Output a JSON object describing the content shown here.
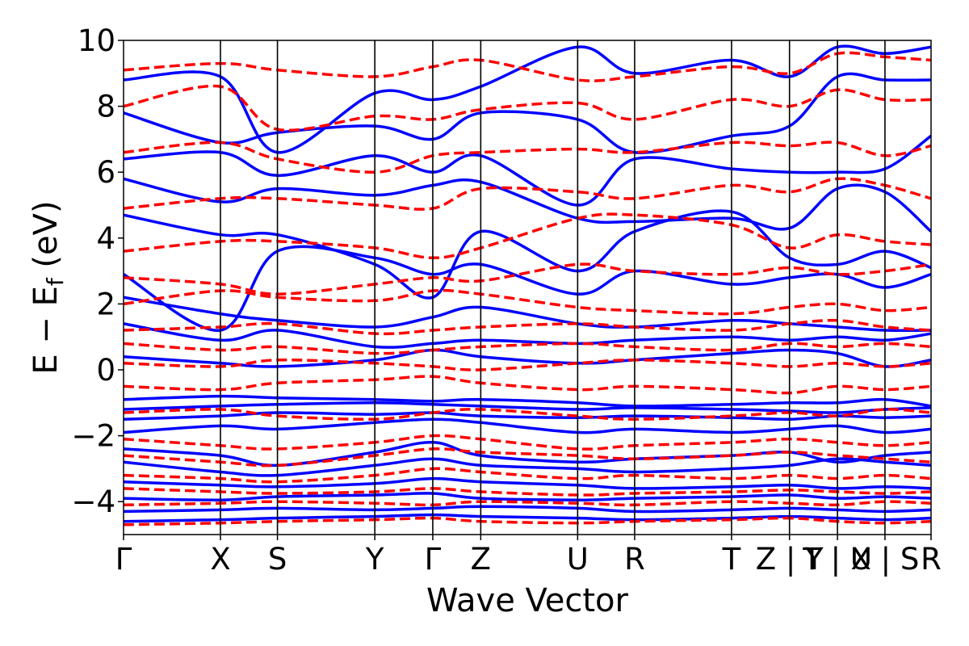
{
  "chart_data": {
    "type": "line",
    "title": "",
    "xlabel": "Wave Vector",
    "ylabel": {
      "main": "E − E",
      "sub": "f",
      "unit": " (eV)"
    },
    "ylim": [
      -5,
      10
    ],
    "yticks": [
      -4,
      -2,
      0,
      2,
      4,
      6,
      8,
      10
    ],
    "ytick_labels": [
      "−4",
      "−2",
      "0",
      "2",
      "4",
      "6",
      "8",
      "10"
    ],
    "xlim": [
      0,
      17
    ],
    "high_symmetry_points": [
      {
        "x": 0.0,
        "label": "Γ"
      },
      {
        "x": 2.04,
        "label": "X"
      },
      {
        "x": 3.24,
        "label": "S"
      },
      {
        "x": 5.29,
        "label": "Y"
      },
      {
        "x": 6.51,
        "label": "Γ"
      },
      {
        "x": 7.52,
        "label": "Z"
      },
      {
        "x": 9.56,
        "label": "U"
      },
      {
        "x": 10.76,
        "label": "R"
      },
      {
        "x": 12.8,
        "label": "T"
      },
      {
        "x": 14.02,
        "label": "Z | Y"
      },
      {
        "x": 15.03,
        "label": "T | U"
      },
      {
        "x": 16.03,
        "label": "X | S"
      },
      {
        "x": 17.0,
        "label": "R"
      }
    ],
    "grid": false,
    "legend": "none",
    "series": [
      {
        "style": "solid",
        "color": "#0000ff",
        "bands": [
          [
            -4.6,
            -4.55,
            -4.5,
            -4.45,
            -4.4,
            -4.45,
            -4.5,
            -4.55,
            -4.5,
            -4.45,
            -4.5,
            -4.55,
            -4.5
          ],
          [
            -4.3,
            -4.25,
            -4.2,
            -4.25,
            -4.2,
            -4.15,
            -4.2,
            -4.3,
            -4.25,
            -4.2,
            -4.25,
            -4.3,
            -4.25
          ],
          [
            -3.9,
            -3.95,
            -3.85,
            -3.8,
            -3.75,
            -3.9,
            -3.95,
            -3.9,
            -3.85,
            -3.8,
            -3.9,
            -3.85,
            -3.9
          ],
          [
            -3.4,
            -3.5,
            -3.55,
            -3.45,
            -3.3,
            -3.4,
            -3.5,
            -3.6,
            -3.55,
            -3.5,
            -3.6,
            -3.55,
            -3.6
          ],
          [
            -2.8,
            -3.1,
            -3.2,
            -2.9,
            -2.7,
            -2.9,
            -3.0,
            -3.1,
            -3.0,
            -2.9,
            -2.7,
            -2.8,
            -2.9
          ],
          [
            -2.4,
            -2.6,
            -2.9,
            -2.5,
            -2.2,
            -2.6,
            -2.8,
            -2.7,
            -2.6,
            -2.5,
            -2.8,
            -2.6,
            -2.5
          ],
          [
            -1.9,
            -1.7,
            -1.8,
            -1.6,
            -1.5,
            -1.6,
            -1.9,
            -1.8,
            -1.9,
            -1.8,
            -1.7,
            -1.9,
            -1.8
          ],
          [
            -1.5,
            -1.4,
            -1.3,
            -1.35,
            -1.3,
            -1.4,
            -1.45,
            -1.4,
            -1.45,
            -1.5,
            -1.4,
            -1.45,
            -1.4
          ],
          [
            -1.2,
            -1.1,
            -1.05,
            -1.0,
            -1.05,
            -1.1,
            -1.2,
            -1.15,
            -1.2,
            -1.25,
            -1.3,
            -1.2,
            -1.15
          ],
          [
            -0.9,
            -0.8,
            -0.85,
            -0.9,
            -0.95,
            -0.9,
            -1.0,
            -1.1,
            -1.05,
            -1.0,
            -1.0,
            -0.9,
            -1.1
          ],
          [
            0.4,
            0.2,
            0.1,
            0.3,
            0.6,
            0.4,
            0.2,
            0.3,
            0.5,
            0.6,
            0.5,
            0.1,
            0.3
          ],
          [
            1.4,
            0.9,
            1.2,
            0.7,
            0.8,
            0.9,
            0.8,
            0.9,
            1.0,
            0.9,
            1.0,
            0.9,
            1.1
          ],
          [
            2.2,
            1.7,
            1.5,
            1.3,
            1.6,
            1.9,
            1.4,
            1.3,
            1.5,
            1.4,
            1.3,
            1.2,
            1.2
          ],
          [
            2.9,
            1.2,
            3.6,
            3.4,
            2.9,
            3.2,
            2.3,
            3.0,
            2.6,
            2.8,
            2.9,
            2.5,
            2.9
          ],
          [
            4.7,
            4.1,
            4.1,
            3.2,
            2.2,
            4.2,
            3.0,
            4.2,
            4.8,
            3.4,
            3.2,
            3.6,
            3.1
          ],
          [
            5.8,
            5.1,
            5.5,
            5.3,
            5.6,
            5.7,
            4.6,
            4.5,
            4.6,
            4.3,
            5.5,
            5.4,
            4.2
          ],
          [
            6.4,
            6.6,
            5.9,
            6.5,
            6.0,
            6.5,
            5.0,
            6.4,
            6.1,
            6.0,
            6.0,
            6.1,
            7.1
          ],
          [
            7.8,
            6.9,
            7.2,
            7.4,
            7.0,
            7.8,
            7.6,
            6.6,
            7.1,
            7.4,
            8.9,
            8.8,
            8.8
          ],
          [
            8.8,
            8.9,
            6.6,
            8.4,
            8.2,
            8.6,
            9.8,
            9.0,
            9.4,
            8.9,
            9.8,
            9.6,
            9.8
          ]
        ]
      },
      {
        "style": "dashed",
        "color": "#ff0000",
        "bands": [
          [
            -4.7,
            -4.65,
            -4.6,
            -4.55,
            -4.5,
            -4.6,
            -4.65,
            -4.6,
            -4.55,
            -4.5,
            -4.6,
            -4.65,
            -4.6
          ],
          [
            -4.1,
            -4.05,
            -4.0,
            -4.05,
            -4.1,
            -4.0,
            -4.05,
            -4.1,
            -4.0,
            -4.05,
            -4.1,
            -4.0,
            -4.05
          ],
          [
            -3.6,
            -3.7,
            -3.75,
            -3.7,
            -3.6,
            -3.7,
            -3.8,
            -3.75,
            -3.7,
            -3.65,
            -3.7,
            -3.75,
            -3.7
          ],
          [
            -3.2,
            -3.3,
            -3.4,
            -3.2,
            -3.0,
            -3.1,
            -3.3,
            -3.2,
            -3.3,
            -3.2,
            -3.3,
            -3.2,
            -3.3
          ],
          [
            -2.6,
            -2.8,
            -2.9,
            -2.6,
            -2.4,
            -2.5,
            -2.6,
            -2.7,
            -2.6,
            -2.5,
            -2.6,
            -2.7,
            -2.8
          ],
          [
            -2.1,
            -2.3,
            -2.4,
            -2.2,
            -2.0,
            -2.1,
            -2.4,
            -2.3,
            -2.2,
            -2.1,
            -2.2,
            -2.3,
            -2.2
          ],
          [
            -1.3,
            -1.2,
            -1.4,
            -1.5,
            -1.3,
            -1.2,
            -1.4,
            -1.5,
            -1.4,
            -1.3,
            -1.4,
            -1.2,
            -1.3
          ],
          [
            -0.5,
            -0.6,
            -0.4,
            -0.3,
            -0.2,
            -0.4,
            -0.6,
            -0.5,
            -0.6,
            -0.7,
            -0.5,
            -0.6,
            -0.5
          ],
          [
            0.2,
            0.1,
            0.3,
            0.2,
            0.1,
            0.0,
            0.2,
            0.3,
            0.2,
            0.1,
            0.2,
            0.1,
            0.2
          ],
          [
            0.8,
            0.6,
            0.7,
            0.5,
            0.6,
            0.7,
            0.8,
            0.7,
            0.6,
            0.8,
            0.7,
            0.8,
            0.7
          ],
          [
            1.2,
            1.3,
            1.4,
            1.1,
            1.2,
            1.3,
            1.4,
            1.3,
            1.2,
            1.4,
            1.5,
            1.3,
            1.2
          ],
          [
            2.0,
            2.4,
            2.2,
            2.1,
            2.4,
            2.3,
            1.9,
            1.8,
            1.7,
            1.9,
            2.0,
            1.8,
            1.9
          ],
          [
            2.8,
            2.6,
            2.3,
            2.6,
            2.8,
            2.7,
            3.2,
            3.0,
            2.9,
            3.1,
            2.9,
            3.0,
            3.2
          ],
          [
            3.6,
            3.9,
            3.9,
            3.7,
            3.4,
            3.7,
            4.6,
            4.7,
            4.4,
            3.7,
            4.1,
            3.9,
            3.8
          ],
          [
            4.9,
            5.2,
            5.2,
            5.0,
            4.9,
            5.5,
            5.4,
            5.2,
            5.6,
            5.4,
            5.8,
            5.6,
            5.2
          ],
          [
            6.6,
            6.9,
            6.4,
            6.0,
            6.5,
            6.6,
            6.7,
            6.6,
            6.9,
            6.8,
            6.9,
            6.5,
            6.8
          ],
          [
            8.0,
            8.6,
            7.3,
            7.7,
            7.6,
            7.9,
            8.1,
            7.6,
            8.2,
            8.0,
            8.5,
            8.2,
            8.2
          ],
          [
            9.1,
            9.3,
            9.1,
            8.9,
            9.2,
            9.4,
            8.8,
            8.9,
            9.2,
            9.0,
            9.6,
            9.5,
            9.4
          ]
        ]
      }
    ]
  }
}
